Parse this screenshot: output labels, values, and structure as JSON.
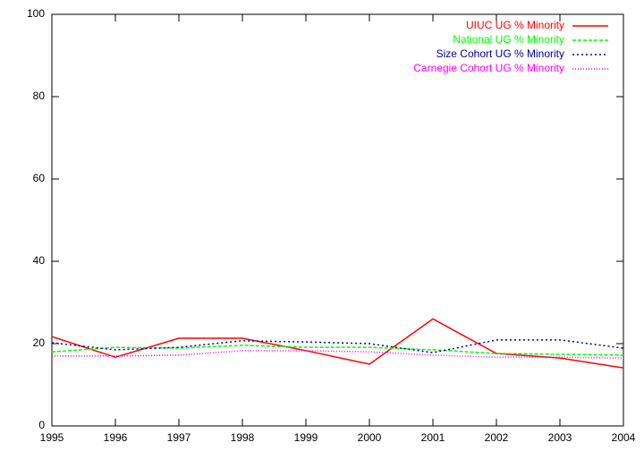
{
  "chart_data": {
    "type": "line",
    "x": [
      1995,
      1996,
      1997,
      1998,
      1999,
      2000,
      2001,
      2002,
      2003,
      2004
    ],
    "xlim": [
      1995,
      2004
    ],
    "xticks": [
      1995,
      1996,
      1997,
      1998,
      1999,
      2000,
      2001,
      2002,
      2003,
      2004
    ],
    "ylim": [
      0,
      100
    ],
    "yticks": [
      0,
      20,
      40,
      60,
      80,
      100
    ],
    "legend": "top-right",
    "series": [
      {
        "name": "UIUC UG % Minority",
        "color": "#ff0000",
        "dash": "none",
        "values": [
          21.7,
          16.7,
          21.3,
          21.3,
          18.3,
          15,
          26,
          17.6,
          16.5,
          14.1
        ]
      },
      {
        "name": "National UG % Minority",
        "color": "#00ff00",
        "dash": "4,2",
        "values": [
          18,
          19.1,
          18.9,
          19.6,
          19.1,
          19.1,
          18.5,
          17.6,
          17.4,
          17.2
        ]
      },
      {
        "name": "Size Cohort UG % Minority",
        "color": "#0000a0",
        "dash": "2,3",
        "values": [
          20.2,
          18.5,
          19.1,
          20.7,
          20.4,
          20,
          17.8,
          20.9,
          20.9,
          18.9
        ]
      },
      {
        "name": "Carnegie Cohort UG % Minority",
        "color": "#ff00ff",
        "dash": "1,2",
        "values": [
          17,
          17,
          17.2,
          18.3,
          18.3,
          18,
          17.2,
          16.7,
          16.7,
          16.5
        ]
      }
    ]
  }
}
